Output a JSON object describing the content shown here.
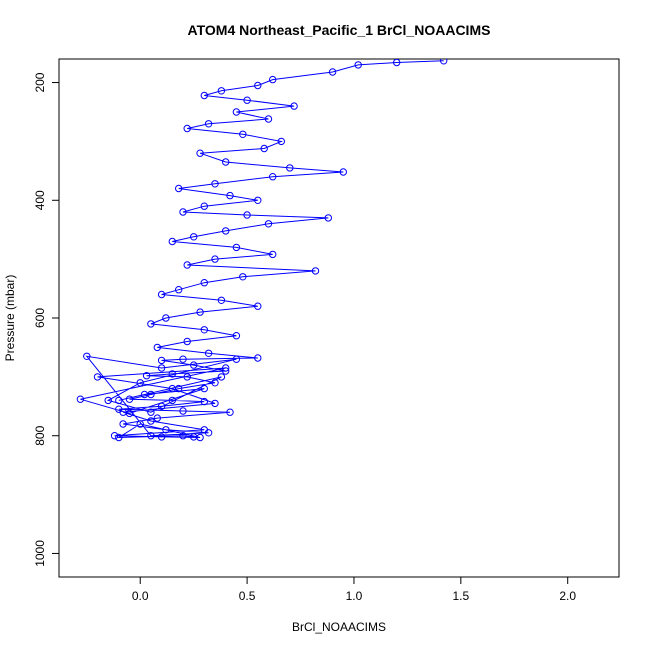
{
  "chart_data": {
    "type": "scatter",
    "title": "ATOM4 Northeast_Pacific_1 BrCl_NOAACIMS",
    "xlabel": "BrCl_NOAACIMS",
    "ylabel": "Pressure (mbar)",
    "xlim": [
      -0.38,
      2.24
    ],
    "ylim": [
      1040,
      160
    ],
    "y_reversed": true,
    "grid": false,
    "connect_points": true,
    "marker": "open-circle",
    "xticks": [
      0.0,
      0.5,
      1.0,
      1.5,
      2.0
    ],
    "xtick_labels": [
      "0.0",
      "0.5",
      "1.0",
      "1.5",
      "2.0"
    ],
    "yticks": [
      200,
      400,
      600,
      800,
      1000
    ],
    "ytick_labels": [
      "200",
      "400",
      "600",
      "800",
      "1000"
    ],
    "series": [
      {
        "color": "#0000ff",
        "x": [
          1.42,
          1.2,
          1.02,
          0.9,
          0.62,
          0.55,
          0.38,
          0.3,
          0.5,
          0.72,
          0.45,
          0.6,
          0.32,
          0.22,
          0.48,
          0.66,
          0.58,
          0.28,
          0.4,
          0.7,
          0.95,
          0.62,
          0.35,
          0.18,
          0.42,
          0.55,
          0.3,
          0.2,
          0.5,
          0.88,
          0.6,
          0.4,
          0.25,
          0.15,
          0.45,
          0.62,
          0.35,
          0.22,
          0.82,
          0.48,
          0.3,
          0.18,
          0.1,
          0.38,
          0.55,
          0.28,
          0.12,
          0.05,
          0.3,
          0.45,
          0.22,
          0.08,
          0.32,
          0.55,
          0.2,
          0.1,
          0.25,
          0.4,
          0.15,
          0.03,
          0.22,
          0.35,
          0.18,
          0.05,
          -0.05,
          0.15,
          0.3,
          0.1,
          -0.1,
          0.2,
          0.42,
          0.08,
          -0.08,
          0.12,
          0.32,
          0.05,
          -0.25,
          0.1,
          0.45,
          0.0,
          -0.15,
          0.05,
          0.38,
          -0.1,
          0.02,
          0.3,
          -0.05,
          -0.28,
          0.4,
          -0.2,
          0.15,
          0.35,
          -0.08,
          0.05,
          0.3,
          -0.12,
          0.1,
          0.28,
          0.0,
          -0.1,
          0.2,
          0.25
        ],
        "y": [
          163,
          166,
          170,
          182,
          195,
          205,
          214,
          222,
          230,
          240,
          250,
          262,
          270,
          278,
          288,
          300,
          312,
          320,
          335,
          345,
          352,
          360,
          372,
          380,
          392,
          400,
          410,
          420,
          425,
          430,
          440,
          452,
          462,
          470,
          480,
          492,
          500,
          510,
          520,
          530,
          540,
          552,
          560,
          570,
          580,
          590,
          600,
          610,
          620,
          630,
          640,
          650,
          660,
          668,
          670,
          672,
          680,
          690,
          695,
          698,
          700,
          710,
          720,
          730,
          738,
          740,
          742,
          750,
          755,
          758,
          760,
          770,
          780,
          790,
          795,
          800,
          665,
          685,
          670,
          710,
          740,
          760,
          700,
          740,
          730,
          720,
          762,
          738,
          685,
          700,
          720,
          745,
          760,
          775,
          790,
          800,
          802,
          803,
          780,
          803,
          800,
          802
        ]
      }
    ]
  }
}
